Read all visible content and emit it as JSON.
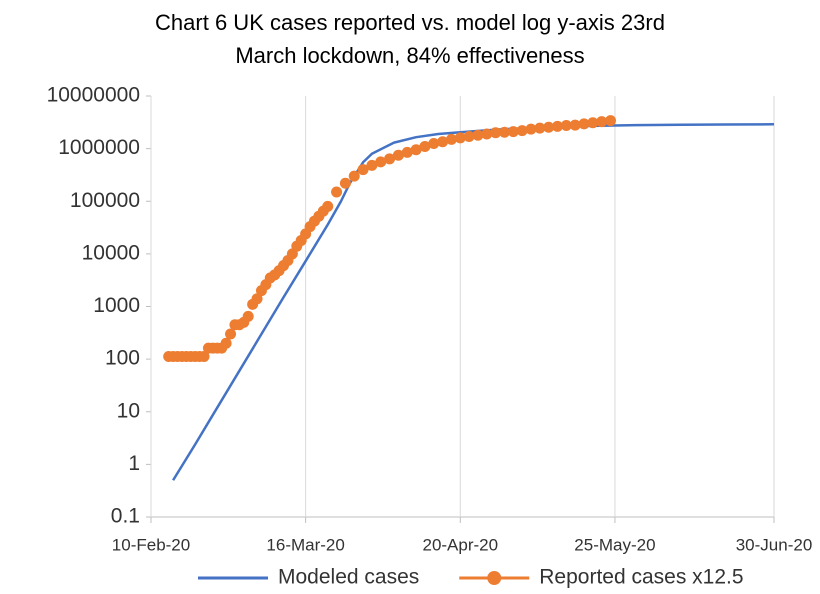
{
  "chart_data": {
    "type": "line",
    "title": "Chart 6 UK cases reported vs. model log y-axis 23rd March lockdown, 84% effectiveness",
    "log_y": true,
    "grid": "x",
    "legend": "bottom",
    "xlim": [
      "2020-02-10",
      "2020-06-30"
    ],
    "xticks": [
      {
        "value": "2020-02-10",
        "label": "10-Feb-20"
      },
      {
        "value": "2020-03-16",
        "label": "16-Mar-20"
      },
      {
        "value": "2020-04-20",
        "label": "20-Apr-20"
      },
      {
        "value": "2020-05-25",
        "label": "25-May-20"
      },
      {
        "value": "2020-06-30",
        "label": "30-Jun-20"
      }
    ],
    "ylim": [
      0.1,
      10000000
    ],
    "yticks": [
      0.1,
      1,
      10,
      100,
      1000,
      10000,
      100000,
      1000000,
      10000000
    ],
    "series": [
      {
        "name": "Modeled cases",
        "color": "#4472c4",
        "marker": false,
        "x": [
          "2020-02-15",
          "2020-02-20",
          "2020-02-25",
          "2020-03-01",
          "2020-03-06",
          "2020-03-11",
          "2020-03-16",
          "2020-03-21",
          "2020-03-24",
          "2020-03-26",
          "2020-03-29",
          "2020-03-31",
          "2020-04-05",
          "2020-04-10",
          "2020-04-15",
          "2020-04-20",
          "2020-04-25",
          "2020-04-30",
          "2020-05-10",
          "2020-05-20",
          "2020-05-30",
          "2020-06-09",
          "2020-06-19",
          "2020-06-30"
        ],
        "values": [
          0.5,
          2.4,
          12,
          60,
          300,
          1500,
          7300,
          36000,
          100000,
          220000,
          550000,
          800000,
          1300000,
          1650000,
          1900000,
          2050000,
          2200000,
          2350000,
          2550000,
          2700000,
          2800000,
          2850000,
          2880000,
          2900000
        ]
      },
      {
        "name": "Reported cases x12.5",
        "color": "#ed7d31",
        "marker": true,
        "x": [
          "2020-02-14",
          "2020-02-15",
          "2020-02-16",
          "2020-02-17",
          "2020-02-18",
          "2020-02-19",
          "2020-02-20",
          "2020-02-21",
          "2020-02-22",
          "2020-02-23",
          "2020-02-24",
          "2020-02-25",
          "2020-02-26",
          "2020-02-27",
          "2020-02-28",
          "2020-02-29",
          "2020-03-01",
          "2020-03-02",
          "2020-03-03",
          "2020-03-04",
          "2020-03-05",
          "2020-03-06",
          "2020-03-07",
          "2020-03-08",
          "2020-03-09",
          "2020-03-10",
          "2020-03-11",
          "2020-03-12",
          "2020-03-13",
          "2020-03-14",
          "2020-03-15",
          "2020-03-16",
          "2020-03-17",
          "2020-03-18",
          "2020-03-19",
          "2020-03-20",
          "2020-03-21",
          "2020-03-23",
          "2020-03-25",
          "2020-03-27",
          "2020-03-29",
          "2020-03-31",
          "2020-04-02",
          "2020-04-04",
          "2020-04-06",
          "2020-04-08",
          "2020-04-10",
          "2020-04-12",
          "2020-04-14",
          "2020-04-16",
          "2020-04-18",
          "2020-04-20",
          "2020-04-22",
          "2020-04-24",
          "2020-04-26",
          "2020-04-28",
          "2020-04-30",
          "2020-05-02",
          "2020-05-04",
          "2020-05-06",
          "2020-05-08",
          "2020-05-10",
          "2020-05-12",
          "2020-05-14",
          "2020-05-16",
          "2020-05-18",
          "2020-05-20",
          "2020-05-22",
          "2020-05-24"
        ],
        "values": [
          112,
          112,
          112,
          112,
          112,
          112,
          112,
          112,
          112,
          162,
          162,
          162,
          162,
          200,
          300,
          450,
          450,
          500,
          650,
          1100,
          1400,
          2000,
          2600,
          3500,
          4000,
          4800,
          6000,
          7500,
          10000,
          14000,
          18000,
          24000,
          33000,
          42000,
          52000,
          65000,
          80000,
          150000,
          220000,
          300000,
          400000,
          480000,
          560000,
          640000,
          750000,
          850000,
          950000,
          1100000,
          1250000,
          1350000,
          1500000,
          1600000,
          1700000,
          1800000,
          1900000,
          2000000,
          2050000,
          2100000,
          2200000,
          2350000,
          2450000,
          2550000,
          2650000,
          2750000,
          2800000,
          2950000,
          3100000,
          3250000,
          3400000
        ]
      }
    ]
  }
}
